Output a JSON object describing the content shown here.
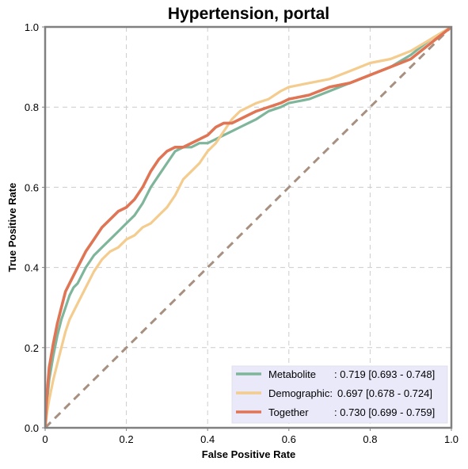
{
  "chart_data": {
    "type": "line",
    "title": "Hypertension, portal",
    "xlabel": "False Positive Rate",
    "ylabel": "True Positive Rate",
    "xlim": [
      0,
      1
    ],
    "ylim": [
      0,
      1
    ],
    "xticks": [
      "0",
      "0.2",
      "0.4",
      "0.6",
      "0.8",
      "1.0"
    ],
    "yticks": [
      "0.0",
      "0.2",
      "0.4",
      "0.6",
      "0.8",
      "1.0"
    ],
    "grid": true,
    "legend_position": "bottom-right",
    "reference_line": {
      "x": [
        0,
        1
      ],
      "y": [
        0,
        1
      ],
      "color": "#a89080"
    },
    "series": [
      {
        "name": "Metabolite",
        "legend_label": "Metabolite",
        "legend_value": ": 0.719 [0.693 - 0.748]",
        "color": "#7fb69b",
        "x": [
          0,
          0.005,
          0.01,
          0.02,
          0.03,
          0.04,
          0.05,
          0.06,
          0.07,
          0.08,
          0.1,
          0.12,
          0.14,
          0.16,
          0.18,
          0.2,
          0.22,
          0.24,
          0.26,
          0.28,
          0.3,
          0.32,
          0.34,
          0.36,
          0.38,
          0.4,
          0.42,
          0.44,
          0.46,
          0.48,
          0.5,
          0.52,
          0.55,
          0.58,
          0.6,
          0.65,
          0.7,
          0.75,
          0.8,
          0.85,
          0.9,
          0.95,
          1.0
        ],
        "y": [
          0,
          0.07,
          0.12,
          0.18,
          0.23,
          0.27,
          0.3,
          0.33,
          0.35,
          0.36,
          0.4,
          0.43,
          0.45,
          0.47,
          0.49,
          0.51,
          0.53,
          0.56,
          0.6,
          0.63,
          0.66,
          0.69,
          0.7,
          0.7,
          0.71,
          0.71,
          0.72,
          0.73,
          0.74,
          0.75,
          0.76,
          0.77,
          0.79,
          0.8,
          0.81,
          0.82,
          0.84,
          0.86,
          0.88,
          0.9,
          0.93,
          0.97,
          1.0
        ]
      },
      {
        "name": "Demographic",
        "legend_label": "Demographic:",
        "legend_value": "0.697 [0.678 - 0.724]",
        "color": "#f4cc8e",
        "x": [
          0,
          0.005,
          0.01,
          0.02,
          0.03,
          0.04,
          0.05,
          0.06,
          0.08,
          0.1,
          0.12,
          0.14,
          0.16,
          0.18,
          0.2,
          0.22,
          0.24,
          0.26,
          0.28,
          0.3,
          0.32,
          0.34,
          0.36,
          0.38,
          0.4,
          0.42,
          0.44,
          0.46,
          0.48,
          0.5,
          0.52,
          0.55,
          0.58,
          0.6,
          0.65,
          0.7,
          0.75,
          0.8,
          0.85,
          0.9,
          0.95,
          1.0
        ],
        "y": [
          0,
          0.04,
          0.07,
          0.12,
          0.16,
          0.2,
          0.24,
          0.27,
          0.31,
          0.35,
          0.39,
          0.42,
          0.44,
          0.45,
          0.47,
          0.48,
          0.5,
          0.51,
          0.53,
          0.55,
          0.58,
          0.62,
          0.64,
          0.66,
          0.69,
          0.71,
          0.74,
          0.77,
          0.79,
          0.8,
          0.81,
          0.82,
          0.84,
          0.85,
          0.86,
          0.87,
          0.89,
          0.91,
          0.92,
          0.94,
          0.97,
          1.0
        ]
      },
      {
        "name": "Together",
        "legend_label": "Together",
        "legend_value": ": 0.730 [0.699 - 0.759]",
        "color": "#df7554",
        "x": [
          0,
          0.005,
          0.01,
          0.02,
          0.03,
          0.04,
          0.05,
          0.06,
          0.07,
          0.08,
          0.1,
          0.12,
          0.14,
          0.16,
          0.18,
          0.2,
          0.22,
          0.24,
          0.26,
          0.28,
          0.3,
          0.32,
          0.34,
          0.36,
          0.38,
          0.4,
          0.42,
          0.44,
          0.46,
          0.48,
          0.5,
          0.52,
          0.55,
          0.58,
          0.6,
          0.65,
          0.7,
          0.75,
          0.8,
          0.85,
          0.9,
          0.95,
          1.0
        ],
        "y": [
          0,
          0.09,
          0.15,
          0.21,
          0.26,
          0.3,
          0.34,
          0.36,
          0.38,
          0.4,
          0.44,
          0.47,
          0.5,
          0.52,
          0.54,
          0.55,
          0.57,
          0.6,
          0.64,
          0.67,
          0.69,
          0.7,
          0.7,
          0.71,
          0.72,
          0.73,
          0.75,
          0.76,
          0.76,
          0.77,
          0.78,
          0.79,
          0.8,
          0.81,
          0.82,
          0.83,
          0.85,
          0.86,
          0.88,
          0.9,
          0.92,
          0.96,
          1.0
        ]
      }
    ]
  }
}
